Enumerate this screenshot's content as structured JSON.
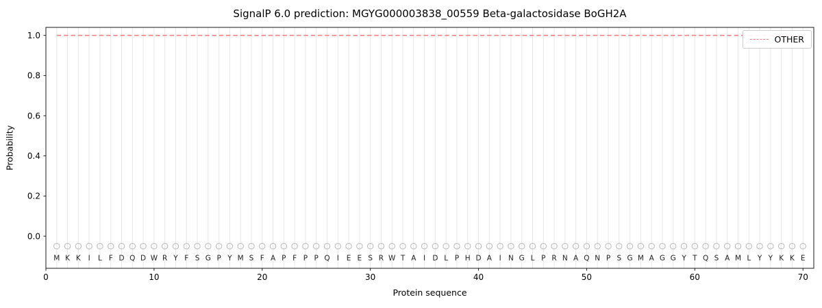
{
  "chart_data": {
    "type": "line",
    "title": "SignalP 6.0 prediction: MGYG000003838_00559 Beta-galactosidase BoGH2A",
    "xlabel": "Protein sequence",
    "ylabel": "Probability",
    "sequence": "MKKILFDQDWRYFSGPYMSFAPFPPQIEESRWTAIDLPHDAINGLPRNAQNPSGMAGGYTQSAMLYYKKE",
    "x": [
      1,
      2,
      3,
      4,
      5,
      6,
      7,
      8,
      9,
      10,
      11,
      12,
      13,
      14,
      15,
      16,
      17,
      18,
      19,
      20,
      21,
      22,
      23,
      24,
      25,
      26,
      27,
      28,
      29,
      30,
      31,
      32,
      33,
      34,
      35,
      36,
      37,
      38,
      39,
      40,
      41,
      42,
      43,
      44,
      45,
      46,
      47,
      48,
      49,
      50,
      51,
      52,
      53,
      54,
      55,
      56,
      57,
      58,
      59,
      60,
      61,
      62,
      63,
      64,
      65,
      66,
      67,
      68,
      69,
      70
    ],
    "series": [
      {
        "name": "OTHER",
        "color": "#f87f7f",
        "dash": true,
        "values": [
          1.0,
          1.0,
          1.0,
          1.0,
          1.0,
          1.0,
          1.0,
          1.0,
          1.0,
          1.0,
          1.0,
          1.0,
          1.0,
          1.0,
          1.0,
          1.0,
          1.0,
          1.0,
          1.0,
          1.0,
          1.0,
          1.0,
          1.0,
          1.0,
          1.0,
          1.0,
          1.0,
          1.0,
          1.0,
          1.0,
          1.0,
          1.0,
          1.0,
          1.0,
          1.0,
          1.0,
          1.0,
          1.0,
          1.0,
          1.0,
          1.0,
          1.0,
          1.0,
          1.0,
          1.0,
          1.0,
          1.0,
          1.0,
          1.0,
          1.0,
          1.0,
          1.0,
          1.0,
          1.0,
          1.0,
          1.0,
          1.0,
          1.0,
          1.0,
          1.0,
          1.0,
          1.0,
          1.0,
          1.0,
          1.0,
          1.0,
          1.0,
          1.0,
          1.0,
          1.0
        ]
      }
    ],
    "marker_y": -0.05,
    "xlim": [
      0,
      71
    ],
    "ylim": [
      -0.16,
      1.04
    ],
    "xticks": [
      0,
      10,
      20,
      30,
      40,
      50,
      60,
      70
    ],
    "yticks": [
      0.0,
      0.2,
      0.4,
      0.6,
      0.8,
      1.0
    ],
    "grid": "vertical-per-residue",
    "legend": {
      "position": "top-right",
      "entries": [
        {
          "label": "OTHER",
          "color": "#f87f7f",
          "dash": true
        }
      ]
    },
    "colors": {
      "gridline": "#e7e7e7",
      "frame": "#1a1a1a",
      "marker_stroke": "#b8b8b8",
      "letter": "#222222"
    }
  }
}
